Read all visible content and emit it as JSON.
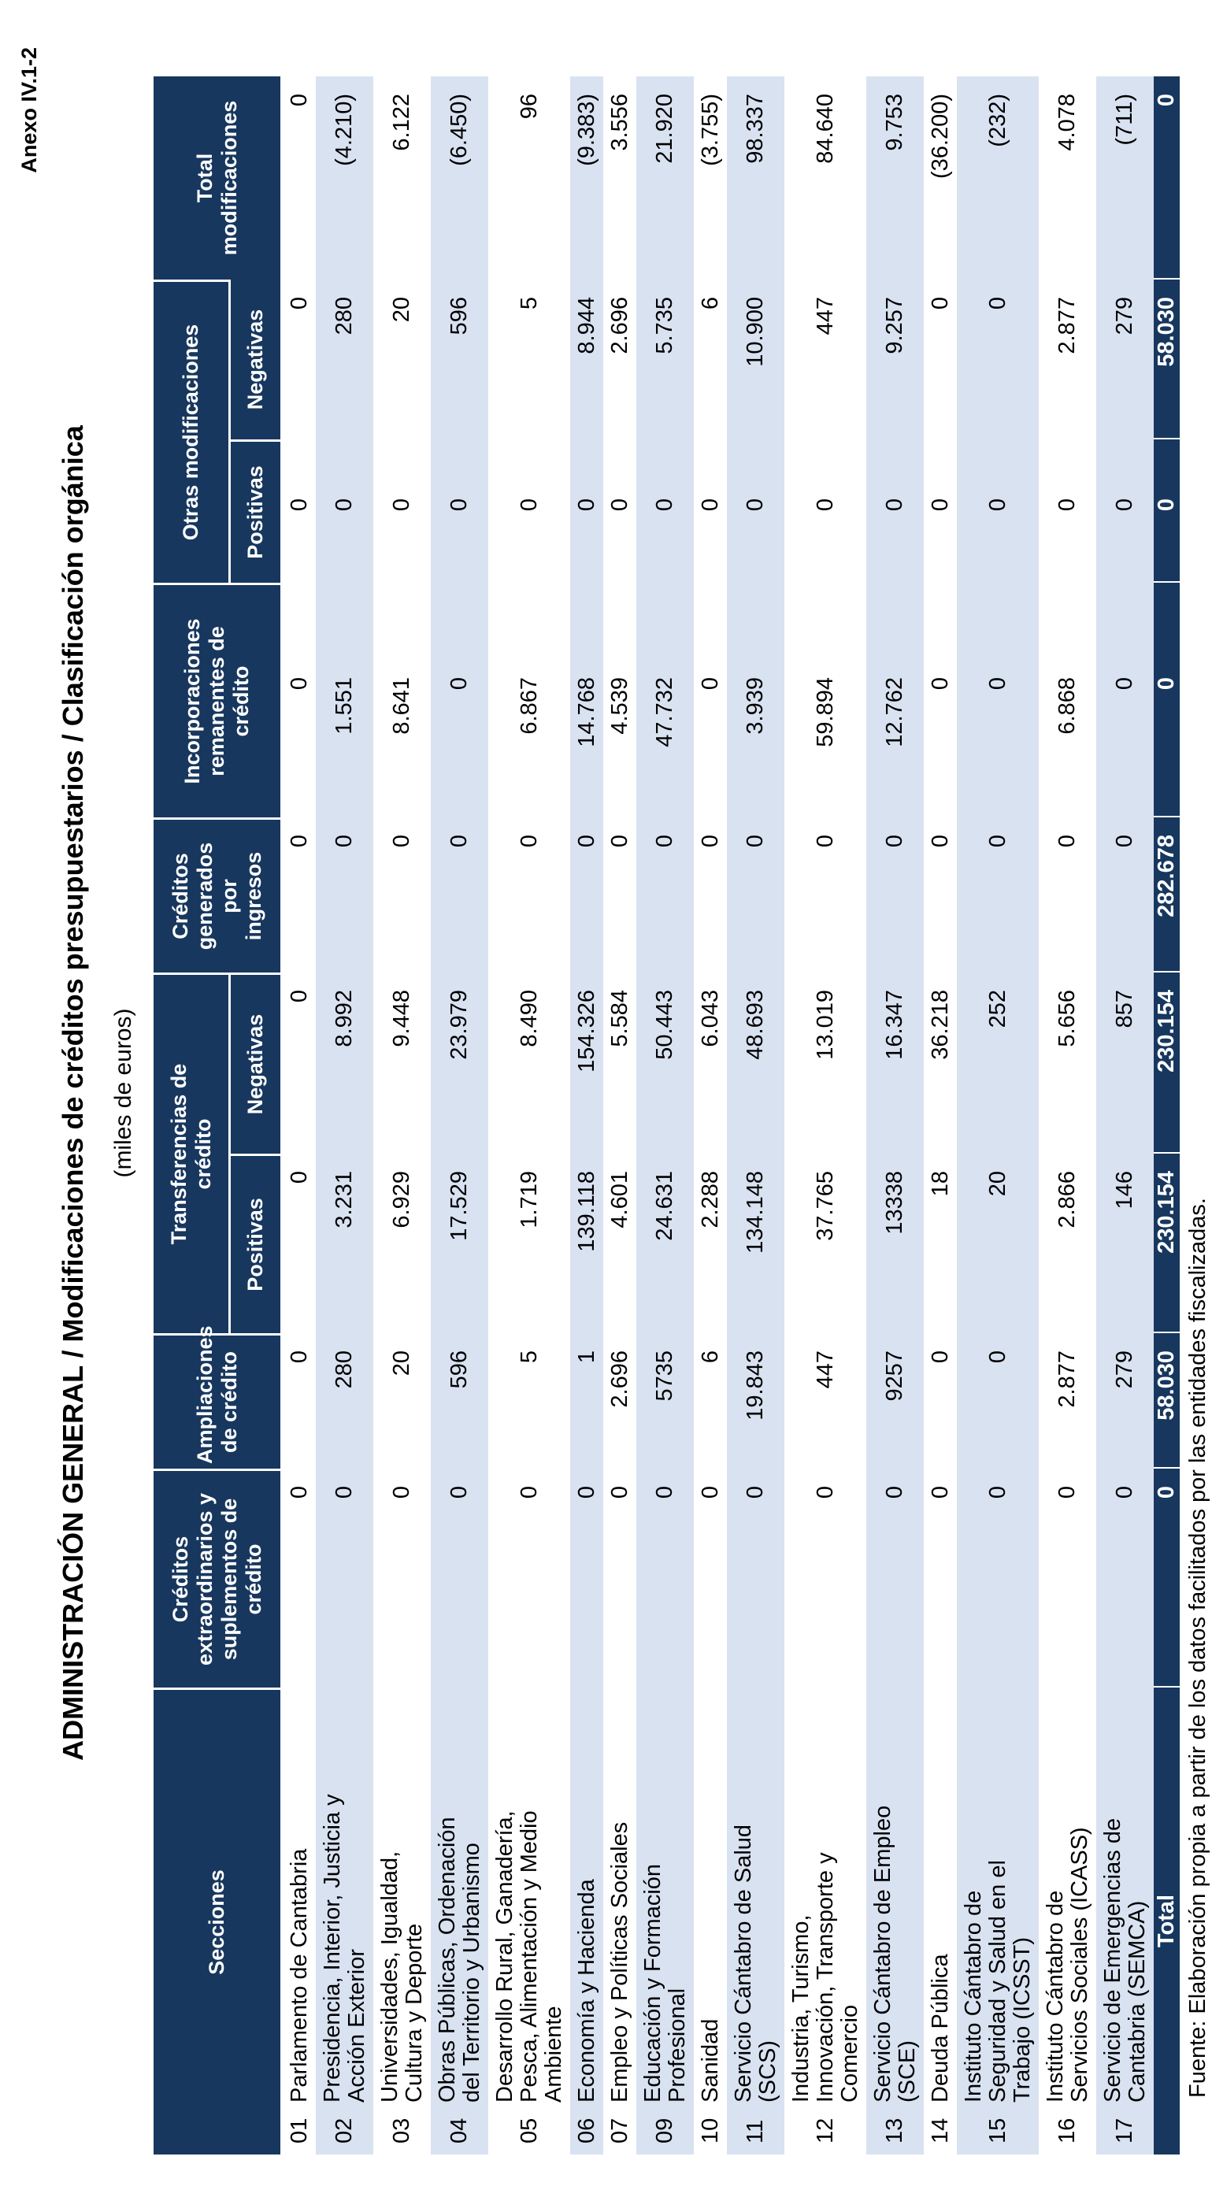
{
  "page": {
    "anexo_label": "Anexo IV.1-2",
    "title": "ADMINISTRACIÓN GENERAL  /  Modificaciones de créditos presupuestarios  /  Clasificación orgánica",
    "subtitle": "(miles de euros)",
    "source_note": "Fuente: Elaboración propia a partir de los datos facilitados por las entidades fiscalizadas."
  },
  "colors": {
    "header_bg": "#17375E",
    "stripe_bg": "#D9E2F1"
  },
  "table": {
    "headers": {
      "secciones": "Secciones",
      "cred_extra": "Créditos\nextraordinarios y\nsuplementos de\ncrédito",
      "ampliaciones": "Ampliaciones\nde crédito",
      "transferencias": "Transferencias de\ncrédito",
      "generados": "Créditos\ngenerados\npor\ningresos",
      "incorporaciones": "Incorporaciones\nremanentes de\ncrédito",
      "otras": "Otras modificaciones",
      "total_mod": "Total\nmodificaciones",
      "positivas": "Positivas",
      "negativas": "Negativas"
    },
    "rows": [
      {
        "code": "01",
        "name": "Parlamento de Cantabria",
        "values": [
          "0",
          "0",
          "0",
          "0",
          "0",
          "0",
          "0",
          "0",
          "0"
        ]
      },
      {
        "code": "02",
        "name": "Presidencia, Interior, Justicia y\nAcción Exterior",
        "values": [
          "0",
          "280",
          "3.231",
          "8.992",
          "0",
          "1.551",
          "0",
          "280",
          "(4.210)"
        ]
      },
      {
        "code": "03",
        "name": "Universidades, Igualdad,\nCultura y Deporte",
        "values": [
          "0",
          "20",
          "6.929",
          "9.448",
          "0",
          "8.641",
          "0",
          "20",
          "6.122"
        ]
      },
      {
        "code": "04",
        "name": "Obras Públicas, Ordenación\ndel Territorio y Urbanismo",
        "values": [
          "0",
          "596",
          "17.529",
          "23.979",
          "0",
          "0",
          "0",
          "596",
          "(6.450)"
        ]
      },
      {
        "code": "05",
        "name": "Desarrollo Rural, Ganadería,\nPesca, Alimentación y Medio\nAmbiente",
        "values": [
          "0",
          "5",
          "1.719",
          "8.490",
          "0",
          "6.867",
          "0",
          "5",
          "96"
        ]
      },
      {
        "code": "06",
        "name": "Economía y Hacienda",
        "values": [
          "0",
          "1",
          "139.118",
          "154.326",
          "0",
          "14.768",
          "0",
          "8.944",
          "(9.383)"
        ]
      },
      {
        "code": "07",
        "name": "Empleo y Políticas Sociales",
        "values": [
          "0",
          "2.696",
          "4.601",
          "5.584",
          "0",
          "4.539",
          "0",
          "2.696",
          "3.556"
        ]
      },
      {
        "code": "09",
        "name": "Educación y Formación\nProfesional",
        "values": [
          "0",
          "5735",
          "24.631",
          "50.443",
          "0",
          "47.732",
          "0",
          "5.735",
          "21.920"
        ]
      },
      {
        "code": "10",
        "name": "Sanidad",
        "values": [
          "0",
          "6",
          "2.288",
          "6.043",
          "0",
          "0",
          "0",
          "6",
          "(3.755)"
        ]
      },
      {
        "code": "11",
        "name": "Servicio Cántabro de Salud\n(SCS)",
        "values": [
          "0",
          "19.843",
          "134.148",
          "48.693",
          "0",
          "3.939",
          "0",
          "10.900",
          "98.337"
        ]
      },
      {
        "code": "12",
        "name": "Industria, Turismo,\nInnovación, Transporte y\nComercio",
        "values": [
          "0",
          "447",
          "37.765",
          "13.019",
          "0",
          "59.894",
          "0",
          "447",
          "84.640"
        ]
      },
      {
        "code": "13",
        "name": "Servicio Cántabro de Empleo\n(SCE)",
        "values": [
          "0",
          "9257",
          "13338",
          "16.347",
          "0",
          "12.762",
          "0",
          "9.257",
          "9.753"
        ]
      },
      {
        "code": "14",
        "name": "Deuda Pública",
        "values": [
          "0",
          "0",
          "18",
          "36.218",
          "0",
          "0",
          "0",
          "0",
          "(36.200)"
        ]
      },
      {
        "code": "15",
        "name": "Instituto Cántabro de\nSeguridad y Salud en el\nTrabajo (ICSST)",
        "values": [
          "0",
          "0",
          "20",
          "252",
          "0",
          "0",
          "0",
          "0",
          "(232)"
        ]
      },
      {
        "code": "16",
        "name": "Instituto Cántabro de\nServicios Sociales (ICASS)",
        "values": [
          "0",
          "2.877",
          "2.866",
          "5.656",
          "0",
          "6.868",
          "0",
          "2.877",
          "4.078"
        ]
      },
      {
        "code": "17",
        "name": "Servicio de Emergencias de\nCantabria (SEMCA)",
        "values": [
          "0",
          "279",
          "146",
          "857",
          "0",
          "0",
          "0",
          "279",
          "(711)"
        ]
      }
    ],
    "total_row": {
      "label": "Total",
      "values": [
        "0",
        "58.030",
        "230.154",
        "230.154",
        "282.678",
        "0",
        "0",
        "58.030",
        "0"
      ]
    }
  }
}
